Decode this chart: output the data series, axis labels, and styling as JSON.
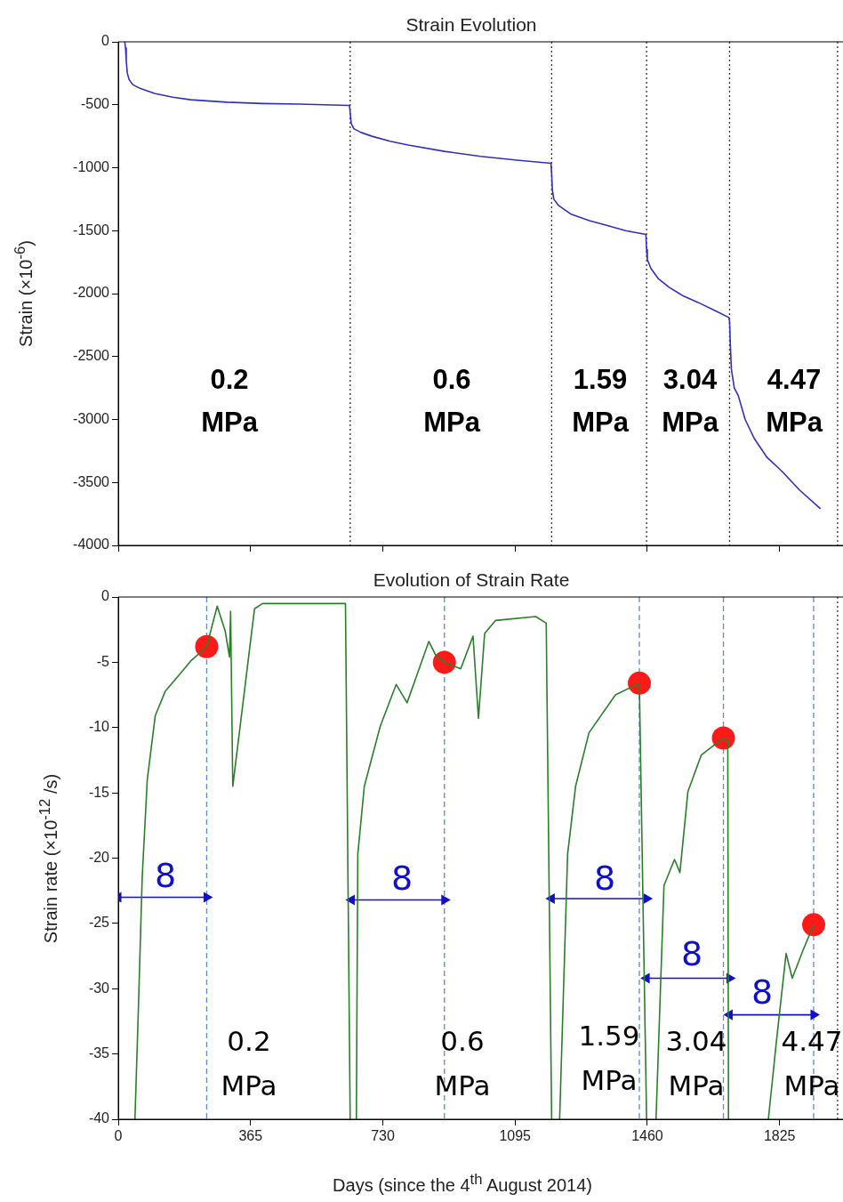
{
  "chart_data": [
    {
      "type": "line",
      "title": "Strain Evolution",
      "ylabel": "Strain (×10$^{-6}$)",
      "xlim": [
        0,
        2000
      ],
      "xticks": [
        0,
        365,
        730,
        1095,
        1460,
        1825
      ],
      "ylim": [
        -4000,
        0
      ],
      "yticks": [
        0,
        -500,
        -1000,
        -1500,
        -2000,
        -2500,
        -3000,
        -3500,
        -4000
      ],
      "tick_labels": "y",
      "marker": "none",
      "line_style": "solid",
      "series": [
        {
          "color": "#3030c0",
          "x": [
            18,
            20,
            22,
            25,
            30,
            40,
            60,
            100,
            150,
            200,
            300,
            400,
            500,
            638,
            640,
            643,
            650,
            670,
            700,
            750,
            800,
            900,
            1000,
            1100,
            1194,
            1196,
            1198,
            1202,
            1215,
            1250,
            1300,
            1350,
            1400,
            1456,
            1458,
            1460,
            1470,
            1490,
            1520,
            1560,
            1600,
            1650,
            1685,
            1687,
            1689,
            1692,
            1700,
            1711,
            1730,
            1755,
            1790,
            1831,
            1880,
            1938
          ],
          "values": [
            0,
            -50,
            -150,
            -250,
            -300,
            -340,
            -370,
            -410,
            -440,
            -460,
            -480,
            -490,
            -495,
            -505,
            -560,
            -650,
            -690,
            -720,
            -750,
            -790,
            -820,
            -870,
            -910,
            -940,
            -965,
            -1050,
            -1180,
            -1250,
            -1300,
            -1370,
            -1420,
            -1460,
            -1500,
            -1530,
            -1650,
            -1730,
            -1800,
            -1880,
            -1950,
            -2020,
            -2070,
            -2140,
            -2190,
            -2220,
            -2400,
            -2600,
            -2750,
            -2810,
            -3000,
            -3150,
            -3300,
            -3410,
            -3560,
            -3710
          ]
        }
      ],
      "ref_lines": [
        {
          "axis": "x",
          "value": 640,
          "color": "#333333",
          "line_style": "dotted"
        },
        {
          "axis": "x",
          "value": 1196,
          "color": "#333333",
          "line_style": "dotted"
        },
        {
          "axis": "x",
          "value": 1458,
          "color": "#333333",
          "line_style": "dotted"
        },
        {
          "axis": "x",
          "value": 1687,
          "color": "#333333",
          "line_style": "dotted"
        },
        {
          "axis": "x",
          "value": 1985,
          "color": "#333333",
          "line_style": "dotted"
        }
      ],
      "annotations": [
        "0.2 MPa",
        "0.6 MPa",
        "1.59 MPa",
        "3.04 MPa",
        "4.47 MPa"
      ]
    },
    {
      "type": "line",
      "title": "Evolution of Strain Rate",
      "ylabel": "Strain rate (×10$^{-12}$ /s)",
      "xlabel": "Days (since the 4$^{th}$ August 2014)",
      "xlim": [
        0,
        2000
      ],
      "xticks": [
        0,
        365,
        730,
        1095,
        1460,
        1825
      ],
      "ylim": [
        -40,
        0
      ],
      "yticks": [
        0,
        -5,
        -10,
        -15,
        -20,
        -25,
        -30,
        -35,
        -40
      ],
      "marker": "none",
      "line_style": "solid",
      "series": [
        {
          "color": "#2a7f2a",
          "x": [
            46,
            55,
            66,
            80,
            102,
            130,
            164,
            200,
            237,
            244,
            273,
            295,
            307,
            310,
            316,
            376,
            398,
            627,
            640,
            648,
            657,
            661,
            679,
            723,
            767,
            797,
            857,
            875,
            900,
            945,
            979,
            994,
            1011,
            1041,
            1152,
            1181,
            1196,
            1207,
            1218,
            1240,
            1262,
            1299,
            1372,
            1438,
            1458,
            1470,
            1484,
            1506,
            1535,
            1550,
            1572,
            1609,
            1670,
            1682,
            1684,
            1740,
            1794,
            1816,
            1843,
            1860,
            1889,
            1919
          ],
          "values": [
            -40,
            -32,
            -21.5,
            -14,
            -9.1,
            -7.2,
            -6.1,
            -4.9,
            -4,
            -3.8,
            -0.7,
            -2.6,
            -4.6,
            -1.1,
            -14.5,
            -0.9,
            -0.5,
            -0.5,
            -40,
            null,
            -40,
            -19.7,
            -14.5,
            -9.9,
            -6.7,
            -8.1,
            -3.4,
            -4.4,
            -5,
            -5.5,
            -3,
            -9.3,
            -2.8,
            -1.8,
            -1.5,
            -2,
            -40,
            null,
            -40,
            -19.7,
            -14.5,
            -10.4,
            -7.5,
            -6.6,
            -40,
            null,
            -40,
            -22.1,
            -20.1,
            -21.1,
            -14.9,
            -12.1,
            -10.8,
            -11,
            -40,
            null,
            -40,
            -34.1,
            -27.3,
            -29.2,
            -27.1,
            -25.1
          ]
        },
        {
          "type": "scatter",
          "marker": "circle",
          "color": "#ff1a1a",
          "x": [
            244,
            900,
            1438,
            1670,
            1919
          ],
          "values": [
            -3.8,
            -5,
            -6.6,
            -10.8,
            -25.1
          ]
        },
        {
          "type": "line",
          "marker": "triangle",
          "color": "#1010cc",
          "x": [
            0,
            244
          ],
          "values": [
            -23,
            -23
          ]
        },
        {
          "type": "line",
          "marker": "triangle",
          "color": "#1010cc",
          "x": [
            644,
            900
          ],
          "values": [
            -23.2,
            -23.2
          ]
        },
        {
          "type": "line",
          "marker": "triangle",
          "color": "#1010cc",
          "x": [
            1196,
            1458
          ],
          "values": [
            -23.1,
            -23.1
          ]
        },
        {
          "type": "line",
          "marker": "triangle",
          "color": "#1010cc",
          "x": [
            1458,
            1687
          ],
          "values": [
            -29.2,
            -29.2
          ]
        },
        {
          "type": "line",
          "marker": "triangle",
          "color": "#1010cc",
          "x": [
            1687,
            1919
          ],
          "values": [
            -32,
            -32
          ]
        }
      ],
      "ref_lines": [
        {
          "axis": "x",
          "value": 244,
          "color": "#5b8bd0",
          "line_style": "dashed"
        },
        {
          "axis": "x",
          "value": 900,
          "color": "#5b8bd0",
          "line_style": "dashed"
        },
        {
          "axis": "x",
          "value": 1438,
          "color": "#5b8bd0",
          "line_style": "dashed"
        },
        {
          "axis": "x",
          "value": 1670,
          "color": "#5b8bd0",
          "line_style": "dashed"
        },
        {
          "axis": "x",
          "value": 1919,
          "color": "#5b8bd0",
          "line_style": "dashed"
        },
        {
          "axis": "x",
          "value": 1985,
          "color": "#333333",
          "line_style": "dotted"
        }
      ],
      "annotations": [
        "8",
        "8",
        "8",
        "8",
        "8",
        "0.2 MPa",
        "0.6 MPa",
        "1.59 MPa",
        "3.04 MPa",
        "4.47 MPa"
      ]
    }
  ]
}
